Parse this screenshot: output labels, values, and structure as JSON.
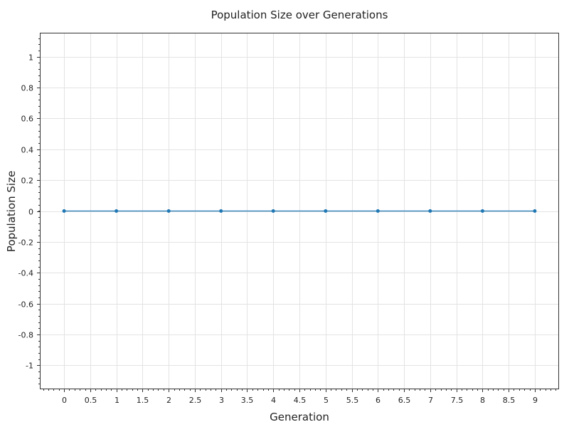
{
  "chart_data": {
    "type": "line",
    "title": "Population Size over Generations",
    "xlabel": "Generation",
    "ylabel": "Population Size",
    "xlim": [
      -0.45,
      9.45
    ],
    "ylim": [
      -1.15,
      1.15
    ],
    "x_ticks": [
      "0",
      "0.5",
      "1",
      "1.5",
      "2",
      "2.5",
      "3",
      "3.5",
      "4",
      "4.5",
      "5",
      "5.5",
      "6",
      "6.5",
      "7",
      "7.5",
      "8",
      "8.5",
      "9"
    ],
    "y_ticks": [
      "1",
      "0.8",
      "0.6",
      "0.4",
      "0.2",
      "0",
      "-0.2",
      "-0.4",
      "-0.6",
      "-0.8",
      "-1"
    ],
    "x_tick_values": [
      0,
      0.5,
      1,
      1.5,
      2,
      2.5,
      3,
      3.5,
      4,
      4.5,
      5,
      5.5,
      6,
      6.5,
      7,
      7.5,
      8,
      8.5,
      9
    ],
    "y_tick_values": [
      1,
      0.8,
      0.6,
      0.4,
      0.2,
      0,
      -0.2,
      -0.4,
      -0.6,
      -0.8,
      -1
    ],
    "x": [
      0,
      1,
      2,
      3,
      4,
      5,
      6,
      7,
      8,
      9
    ],
    "series": [
      {
        "values": [
          0,
          0,
          0,
          0,
          0,
          0,
          0,
          0,
          0,
          0
        ],
        "color": "#1f77b4"
      }
    ],
    "grid": true,
    "legend": "none"
  }
}
